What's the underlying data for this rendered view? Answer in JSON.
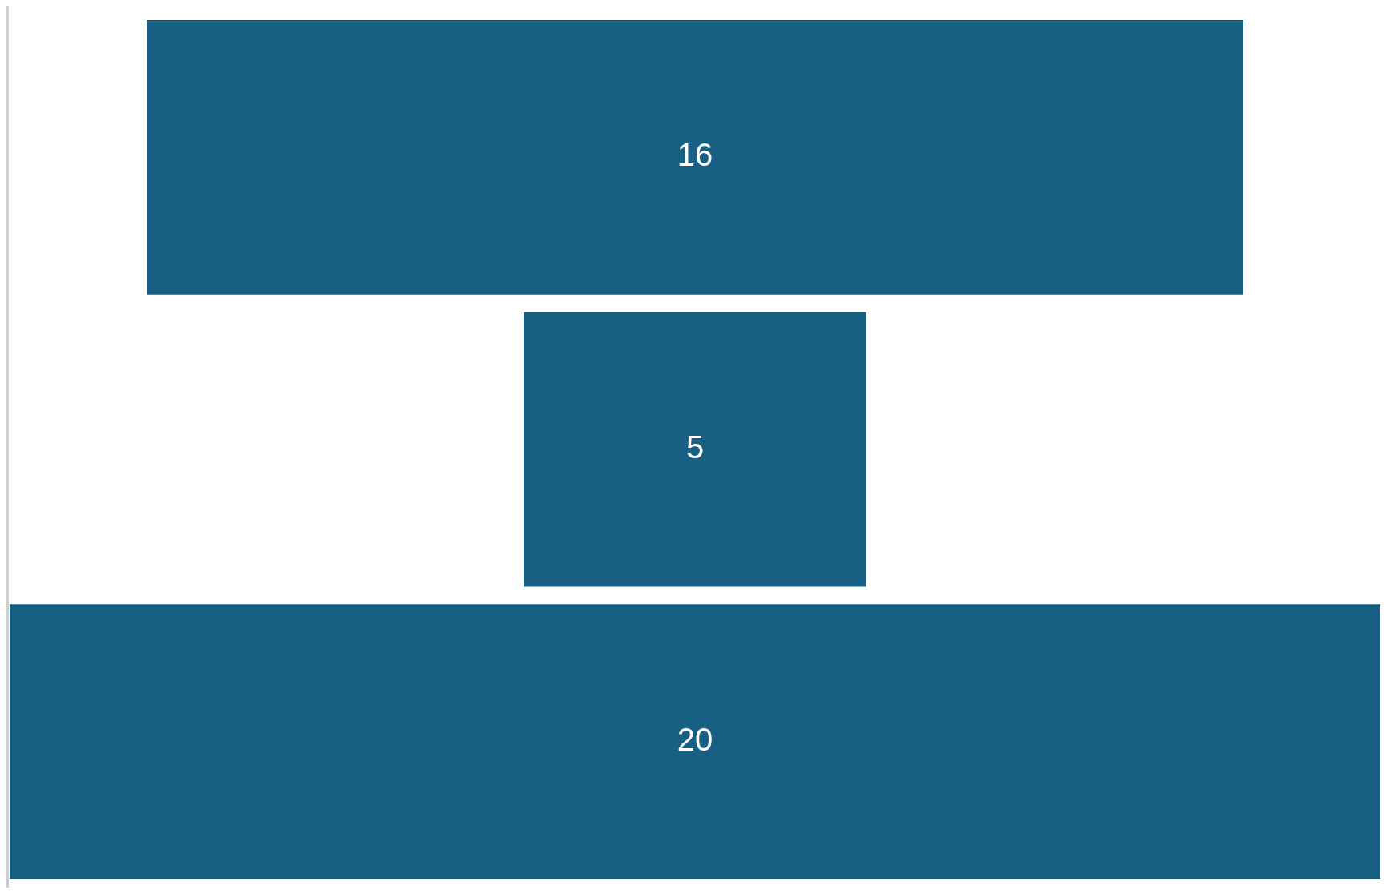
{
  "chart_data": {
    "type": "other",
    "categories": [
      null,
      null,
      null
    ],
    "values": [
      16,
      5,
      20
    ],
    "color": "#186083",
    "data_labels": true
  }
}
